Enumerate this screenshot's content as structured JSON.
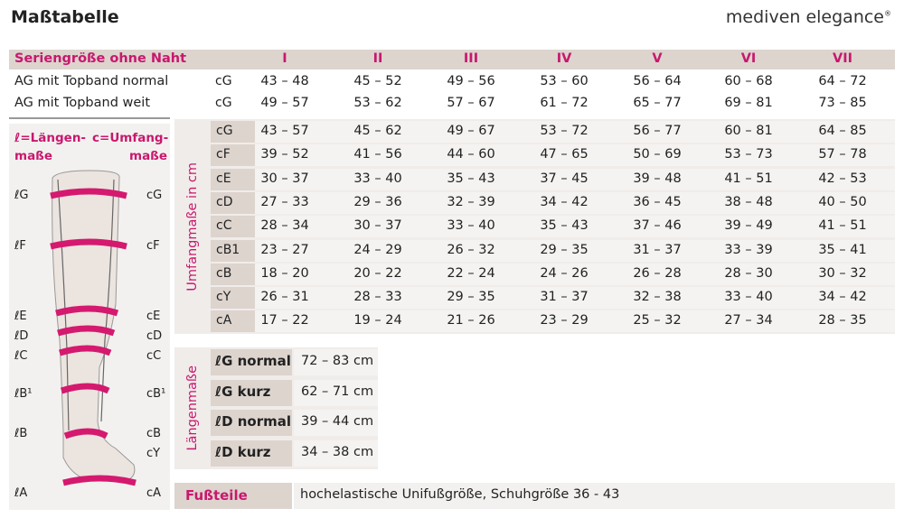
{
  "title": "Maßtabelle",
  "brand": "mediven elegance",
  "brand_mark": "®",
  "accent_color": "#c8186e",
  "header": {
    "label": "Seriengröße ohne Naht",
    "sizes": [
      "I",
      "II",
      "III",
      "IV",
      "V",
      "VI",
      "VII"
    ]
  },
  "ag_rows": [
    {
      "label": "AG mit Topband normal",
      "key": "cG",
      "values": [
        "43 – 48",
        "45 – 52",
        "49 – 56",
        "53 – 60",
        "56 – 64",
        "60 – 68",
        "64 – 72"
      ]
    },
    {
      "label": "AG mit Topband weit",
      "key": "cG",
      "values": [
        "49 – 57",
        "53 – 62",
        "57 – 67",
        "61 – 72",
        "65 – 77",
        "69 – 81",
        "73 – 85"
      ]
    }
  ],
  "legend": {
    "length": "ℓ=Längen-",
    "length2": "maße",
    "circ": "c=Umfang-",
    "circ2": "maße"
  },
  "leg_labels": {
    "left": [
      "ℓG",
      "ℓF",
      "ℓE",
      "ℓD",
      "ℓC",
      "ℓB¹",
      "ℓB",
      "ℓA"
    ],
    "right": [
      "cG",
      "cF",
      "cE",
      "cD",
      "cC",
      "cB¹",
      "cB",
      "cY",
      "cA"
    ]
  },
  "umfang": {
    "label": "Umfangmaße in cm",
    "rows": [
      {
        "key": "cG",
        "values": [
          "43 – 57",
          "45 – 62",
          "49 – 67",
          "53 – 72",
          "56 – 77",
          "60 – 81",
          "64 – 85"
        ]
      },
      {
        "key": "cF",
        "values": [
          "39 – 52",
          "41 – 56",
          "44 – 60",
          "47 – 65",
          "50 – 69",
          "53 – 73",
          "57 – 78"
        ]
      },
      {
        "key": "cE",
        "values": [
          "30 – 37",
          "33 – 40",
          "35 – 43",
          "37 – 45",
          "39 – 48",
          "41 – 51",
          "42 – 53"
        ]
      },
      {
        "key": "cD",
        "values": [
          "27 – 33",
          "29 – 36",
          "32 – 39",
          "34 – 42",
          "36 – 45",
          "38 – 48",
          "40 – 50"
        ]
      },
      {
        "key": "cC",
        "values": [
          "28 – 34",
          "30 – 37",
          "33 – 40",
          "35 – 43",
          "37 – 46",
          "39 – 49",
          "41 – 51"
        ]
      },
      {
        "key": "cB1",
        "values": [
          "23 – 27",
          "24 – 29",
          "26 – 32",
          "29 – 35",
          "31 – 37",
          "33 – 39",
          "35 – 41"
        ]
      },
      {
        "key": "cB",
        "values": [
          "18 – 20",
          "20 – 22",
          "22 – 24",
          "24 – 26",
          "26 – 28",
          "28 – 30",
          "30 – 32"
        ]
      },
      {
        "key": "cY",
        "values": [
          "26 – 31",
          "28 – 33",
          "29 – 35",
          "31 – 37",
          "32 – 38",
          "33 – 40",
          "34 – 42"
        ]
      },
      {
        "key": "cA",
        "values": [
          "17 – 22",
          "19 – 24",
          "21 – 26",
          "23 – 29",
          "25 – 32",
          "27 – 34",
          "28 – 35"
        ]
      }
    ]
  },
  "laengen": {
    "label": "Längenmaße",
    "rows": [
      {
        "key": "ℓG normal",
        "value": "72 – 83 cm"
      },
      {
        "key": "ℓG kurz",
        "value": "62 – 71 cm"
      },
      {
        "key": "ℓD normal",
        "value": "39 – 44 cm"
      },
      {
        "key": "ℓD kurz",
        "value": "34 – 38 cm"
      }
    ]
  },
  "fussteile": {
    "label": "Fußteile",
    "value": "hochelastische Unifußgröße, Schuhgröße 36 - 43"
  }
}
